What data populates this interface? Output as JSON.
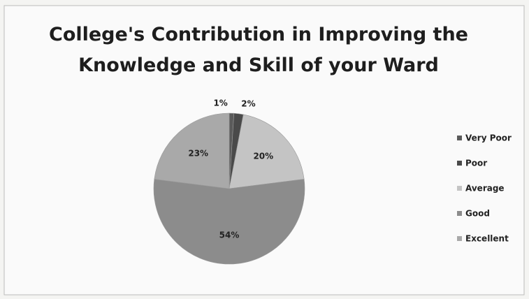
{
  "chart_data": {
    "type": "pie",
    "title": "College's Contribution in Improving the Knowledge and Skill of your Ward",
    "categories": [
      "Very Poor",
      "Poor",
      "Average",
      "Good",
      "Excellent"
    ],
    "values": [
      1,
      2,
      20,
      54,
      23
    ],
    "value_labels": [
      "1%",
      "2%",
      "20%",
      "54%",
      "23%"
    ],
    "colors": [
      "#5a5a5a",
      "#4a4a4a",
      "#c4c4c4",
      "#8c8c8c",
      "#a9a9a9"
    ],
    "legend": "right"
  }
}
